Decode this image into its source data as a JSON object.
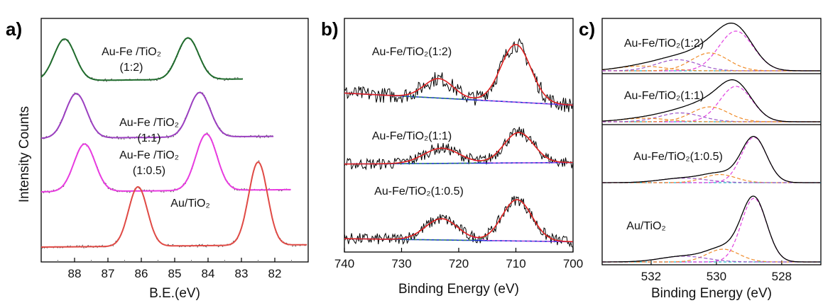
{
  "chart_data": [
    {
      "type": "line",
      "panel_label": "a)",
      "xlabel": "B.E.(eV)",
      "ylabel": "Intensity Counts",
      "xlim": [
        89,
        81
      ],
      "x_ticks": [
        "88",
        "87",
        "86",
        "85",
        "84",
        "83",
        "82"
      ],
      "series": [
        {
          "label_lines": [
            "Au-Fe /TiO₂",
            "(1:2)"
          ],
          "offset": 3.05,
          "color": "#1f6b2c",
          "peaks": [
            [
              88.3,
              0.7,
              0.45
            ],
            [
              84.6,
              0.7,
              0.45
            ]
          ],
          "x_end": 82.95
        },
        {
          "label_lines": [
            "Au-Fe /TiO₂",
            "(1:1)"
          ],
          "offset": 2.08,
          "color": "#9b3fc0",
          "peaks": [
            [
              87.95,
              0.75,
              0.45
            ],
            [
              84.25,
              0.75,
              0.45
            ]
          ],
          "x_end": 82.0
        },
        {
          "label_lines": [
            "Au-Fe /TiO₂",
            "(1:0.5)"
          ],
          "offset": 1.18,
          "color": "#e83be0",
          "peaks": [
            [
              87.7,
              0.8,
              0.45
            ],
            [
              84.05,
              0.95,
              0.45
            ]
          ],
          "x_end": 81.5
        },
        {
          "label_lines": [
            "Au/TiO₂"
          ],
          "offset": 0.25,
          "color": "#e04a45",
          "peaks": [
            [
              86.1,
              1.0,
              0.4
            ],
            [
              82.5,
              1.4,
              0.4
            ]
          ],
          "x_end": 81.0
        }
      ]
    },
    {
      "type": "line",
      "panel_label": "b)",
      "xlabel": "Binding Energy (eV)",
      "xlim": [
        740,
        700
      ],
      "x_ticks": [
        "740",
        "730",
        "720",
        "710",
        "700"
      ],
      "series": [
        {
          "label": "Au-Fe/TiO₂(1:2)",
          "offset": 2.62,
          "base_slope": -0.4,
          "peaks": [
            [
              723.5,
              0.32,
              1.8
            ],
            [
              710.0,
              0.95,
              2.3
            ]
          ],
          "noise": 0.16
        },
        {
          "label": "Au-Fe/TiO₂(1:1)",
          "offset": 1.45,
          "base_slope": 0.05,
          "peaks": [
            [
              723.0,
              0.25,
              2.2
            ],
            [
              709.5,
              0.5,
              2.3
            ]
          ],
          "noise": 0.12
        },
        {
          "label": "Au-Fe/TiO₂(1:0.5)",
          "offset": 0.22,
          "base_slope": -0.1,
          "peaks": [
            [
              723.0,
              0.35,
              2.0
            ],
            [
              709.8,
              0.68,
              2.3
            ]
          ],
          "noise": 0.12
        }
      ]
    },
    {
      "type": "line",
      "panel_label": "c)",
      "xlabel": "Binding Energy (eV)",
      "xlim": [
        533.5,
        526.8
      ],
      "x_ticks": [
        "532",
        "530",
        "528"
      ],
      "series": [
        {
          "label": "Au-Fe/TiO₂(1:2)",
          "peaks": [
            [
              529.4,
              1.0,
              0.75
            ],
            [
              530.2,
              0.45,
              0.8
            ],
            [
              531.2,
              0.28,
              0.9
            ],
            [
              532.3,
              0.12,
              1.0
            ]
          ]
        },
        {
          "label": "Au-Fe/TiO₂(1:1)",
          "peaks": [
            [
              529.4,
              1.0,
              0.7
            ],
            [
              530.2,
              0.42,
              0.8
            ],
            [
              531.1,
              0.25,
              0.9
            ],
            [
              532.2,
              0.1,
              1.0
            ]
          ]
        },
        {
          "label": "Au-Fe/TiO₂(1:0.5)",
          "peaks": [
            [
              528.85,
              1.0,
              0.55
            ],
            [
              529.9,
              0.18,
              0.7
            ],
            [
              531.0,
              0.1,
              1.0
            ]
          ]
        },
        {
          "label": "Au/TiO₂",
          "peaks": [
            [
              528.85,
              1.0,
              0.55
            ],
            [
              529.8,
              0.2,
              0.7
            ],
            [
              531.0,
              0.09,
              1.0
            ]
          ]
        }
      ]
    }
  ]
}
